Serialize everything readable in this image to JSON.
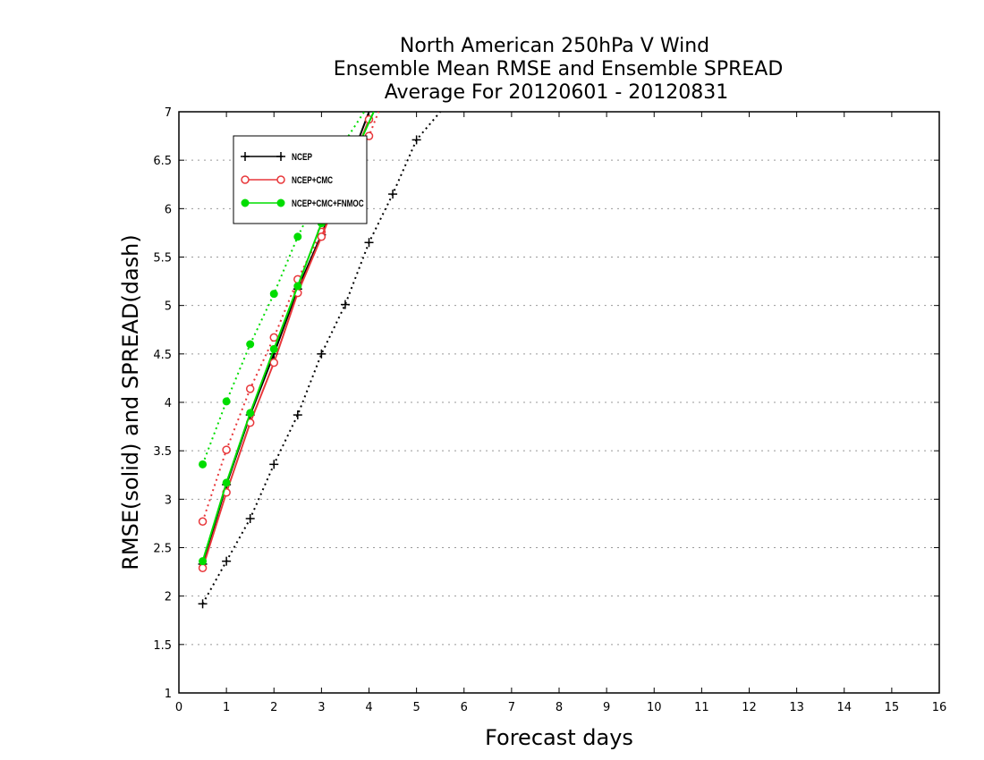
{
  "chart_data": {
    "type": "line",
    "title": [
      "North American 250hPa V Wind",
      "Ensemble Mean RMSE and Ensemble SPREAD",
      "Average For 20120601 - 20120831"
    ],
    "xlabel": "Forecast days",
    "ylabel": "RMSE(solid) and SPREAD(dash)",
    "xlim": [
      0,
      16
    ],
    "ylim": [
      1,
      7
    ],
    "xticks": [
      0,
      1,
      2,
      3,
      4,
      5,
      6,
      7,
      8,
      9,
      10,
      11,
      12,
      13,
      14,
      15,
      16
    ],
    "yticks": [
      1,
      1.5,
      2,
      2.5,
      3,
      3.5,
      4,
      4.5,
      5,
      5.5,
      6,
      6.5,
      7
    ],
    "grid": "horizontal dotted",
    "legend_placement": "top-left",
    "series": [
      {
        "name": "NCEP",
        "color": "#000000",
        "marker": "plus",
        "rmse": {
          "x": [
            0.5,
            1,
            1.5,
            2,
            2.5,
            3,
            3.5,
            4
          ],
          "y": [
            2.33,
            3.15,
            3.87,
            4.5,
            5.17,
            5.73,
            6.35,
            7.0
          ]
        },
        "spread": {
          "x": [
            0.5,
            1,
            1.5,
            2,
            2.5,
            3,
            3.5,
            4,
            4.5,
            5,
            5.5
          ],
          "y": [
            1.92,
            2.36,
            2.8,
            3.36,
            3.87,
            4.5,
            5.01,
            5.65,
            6.15,
            6.71,
            7.0
          ]
        }
      },
      {
        "name": "NCEP+CMC",
        "color": "#e8373a",
        "marker": "open-circle",
        "rmse": {
          "x": [
            0.5,
            1,
            1.5,
            2,
            2.5,
            3,
            3.5,
            4
          ],
          "y": [
            2.29,
            3.07,
            3.79,
            4.41,
            5.13,
            5.71,
            6.3,
            6.92
          ]
        },
        "spread": {
          "x": [
            0.5,
            1,
            1.5,
            2,
            2.5,
            3,
            3.5,
            4,
            4.2
          ],
          "y": [
            2.77,
            3.51,
            4.14,
            4.67,
            5.27,
            5.76,
            6.25,
            6.75,
            7.0
          ]
        }
      },
      {
        "name": "NCEP+CMC+FNMOC",
        "color": "#00dd00",
        "marker": "filled-circle",
        "rmse": {
          "x": [
            0.5,
            1,
            1.5,
            2,
            2.5,
            3,
            3.5,
            4.1
          ],
          "y": [
            2.36,
            3.17,
            3.89,
            4.55,
            5.2,
            5.85,
            6.35,
            7.0
          ]
        },
        "spread": {
          "x": [
            0.5,
            1,
            1.5,
            2,
            2.5,
            3,
            3.5,
            3.9
          ],
          "y": [
            3.36,
            4.01,
            4.6,
            5.12,
            5.71,
            6.21,
            6.7,
            7.0
          ]
        }
      }
    ]
  }
}
